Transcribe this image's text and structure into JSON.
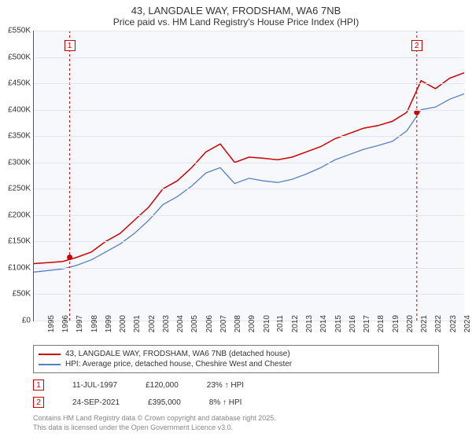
{
  "title": "43, LANGDALE WAY, FRODSHAM, WA6 7NB",
  "subtitle": "Price paid vs. HM Land Registry's House Price Index (HPI)",
  "chart": {
    "type": "line",
    "background_color": "#f6f8fc",
    "grid_color": "#e3e6ee",
    "axis_color": "#555555",
    "ylim": [
      0,
      550
    ],
    "ytick_step": 50,
    "ylabel_prefix": "£",
    "ylabel_suffix": "K",
    "years": [
      1995,
      1996,
      1997,
      1998,
      1999,
      2000,
      2001,
      2002,
      2003,
      2004,
      2005,
      2006,
      2007,
      2008,
      2009,
      2010,
      2011,
      2012,
      2013,
      2014,
      2015,
      2016,
      2017,
      2018,
      2019,
      2020,
      2021,
      2022,
      2023,
      2024,
      2025
    ],
    "series": [
      {
        "name": "property",
        "label": "43, LANGDALE WAY, FRODSHAM, WA6 7NB (detached house)",
        "color": "#cc0000",
        "line_width": 1.5,
        "values": [
          108,
          110,
          112,
          120,
          130,
          150,
          165,
          190,
          215,
          250,
          265,
          290,
          320,
          335,
          300,
          310,
          308,
          305,
          310,
          320,
          330,
          345,
          355,
          365,
          370,
          378,
          395,
          455,
          440,
          460,
          470
        ]
      },
      {
        "name": "hpi",
        "label": "HPI: Average price, detached house, Cheshire West and Chester",
        "color": "#5a7fc4",
        "line_width": 1.3,
        "values": [
          92,
          95,
          98,
          105,
          115,
          130,
          145,
          165,
          190,
          220,
          235,
          255,
          280,
          290,
          260,
          270,
          265,
          262,
          268,
          278,
          290,
          305,
          315,
          325,
          332,
          340,
          360,
          400,
          405,
          420,
          430
        ]
      }
    ],
    "markers": [
      {
        "id": "1",
        "year": 1997.5,
        "value": 120,
        "color": "#cc0000",
        "badge_top": 12
      },
      {
        "id": "2",
        "year": 2021.7,
        "value": 395,
        "color": "#cc0000",
        "badge_top": 12
      }
    ]
  },
  "legend": {
    "items": [
      {
        "color": "#cc0000",
        "label_ref": "chart.series.0.label"
      },
      {
        "color": "#5a7fc4",
        "label_ref": "chart.series.1.label"
      }
    ]
  },
  "sales": [
    {
      "id": "1",
      "date": "11-JUL-1997",
      "price": "£120,000",
      "delta": "23% ↑ HPI"
    },
    {
      "id": "2",
      "date": "24-SEP-2021",
      "price": "£395,000",
      "delta": "8% ↑ HPI"
    }
  ],
  "footnote_line1": "Contains HM Land Registry data © Crown copyright and database right 2025.",
  "footnote_line2": "This data is licensed under the Open Government Licence v3.0."
}
